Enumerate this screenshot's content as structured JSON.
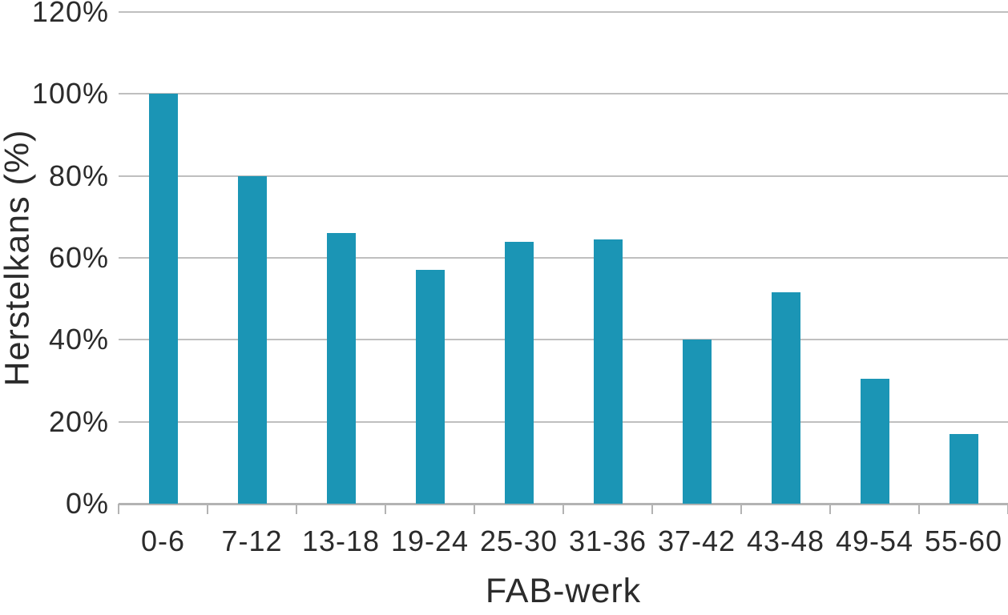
{
  "chart_data": {
    "type": "bar",
    "title": "",
    "xlabel": "FAB-werk",
    "ylabel": "Herstelkans (%)",
    "categories": [
      "0-6",
      "7-12",
      "13-18",
      "19-24",
      "25-30",
      "31-36",
      "37-42",
      "43-48",
      "49-54",
      "55-60"
    ],
    "values": [
      100,
      80,
      66,
      57,
      64,
      64.5,
      40,
      51.5,
      30.5,
      17
    ],
    "y_ticks": [
      {
        "value": 0,
        "label": "0%"
      },
      {
        "value": 20,
        "label": "20%"
      },
      {
        "value": 40,
        "label": "40%"
      },
      {
        "value": 60,
        "label": "60%"
      },
      {
        "value": 80,
        "label": "80%"
      },
      {
        "value": 100,
        "label": "100%"
      },
      {
        "value": 120,
        "label": "120%"
      }
    ],
    "ylim": [
      0,
      120
    ],
    "grid": true,
    "legend": "none",
    "colors": {
      "bar": "#1b95b5",
      "gridline": "#bfbfbf",
      "axis": "#b3b3b3",
      "text": "#2b2b2b"
    }
  }
}
